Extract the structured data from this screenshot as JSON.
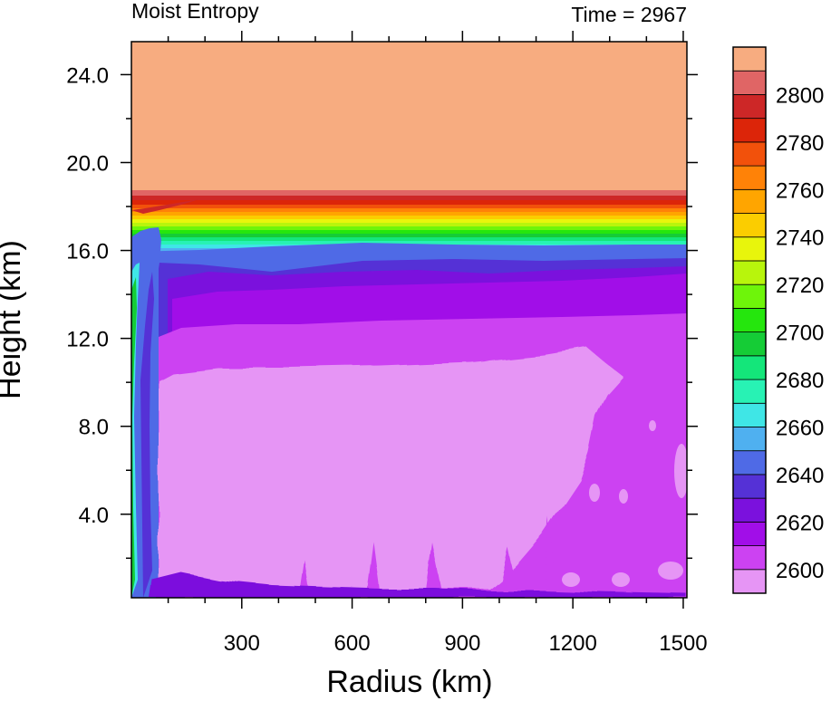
{
  "chart_data": {
    "type": "heatmap",
    "title_left": "Moist Entropy",
    "title_right": "Time = 2967",
    "xlabel": "Radius (km)",
    "ylabel": "Height (km)",
    "xlim": [
      0,
      1510
    ],
    "ylim": [
      0.2,
      25.5
    ],
    "x_ticks": [
      300,
      600,
      900,
      1200,
      1500
    ],
    "x_tick_labels": [
      "300",
      "600",
      "900",
      "1200",
      "1500"
    ],
    "y_ticks": [
      4,
      8,
      12,
      16,
      20,
      24
    ],
    "y_tick_labels": [
      "4.0",
      "8.0",
      "12.0",
      "16.0",
      "20.0",
      "24.0"
    ],
    "colorbar": {
      "levels": [
        2600,
        2610,
        2620,
        2630,
        2640,
        2650,
        2660,
        2670,
        2680,
        2690,
        2700,
        2710,
        2720,
        2730,
        2740,
        2750,
        2760,
        2770,
        2780,
        2790,
        2800
      ],
      "labels": [
        "2600",
        "2620",
        "2640",
        "2660",
        "2680",
        "2700",
        "2720",
        "2740",
        "2760",
        "2780",
        "2800"
      ],
      "label_values": [
        2600,
        2620,
        2640,
        2660,
        2680,
        2700,
        2720,
        2740,
        2760,
        2780,
        2800
      ],
      "colors": [
        "#e695f5",
        "#cc42f2",
        "#a10ee8",
        "#7b11dd",
        "#5531d6",
        "#4f6ae6",
        "#4fb0f0",
        "#3fe6e6",
        "#28f2b4",
        "#14e67a",
        "#15cc36",
        "#25e60d",
        "#6ef50a",
        "#b8f50c",
        "#e8f50c",
        "#fbcd00",
        "#ffa500",
        "#ff8207",
        "#f2510b",
        "#dc2509",
        "#cd2727",
        "#e06565",
        "#f7ac80"
      ]
    },
    "fields": {
      "upper_layer_above_km": 18.5,
      "tropopause_gradient_km": [
        15.5,
        18.5
      ],
      "interior_min_region_km": [
        1,
        10.5
      ],
      "eyewall_radius_km": 45
    }
  }
}
